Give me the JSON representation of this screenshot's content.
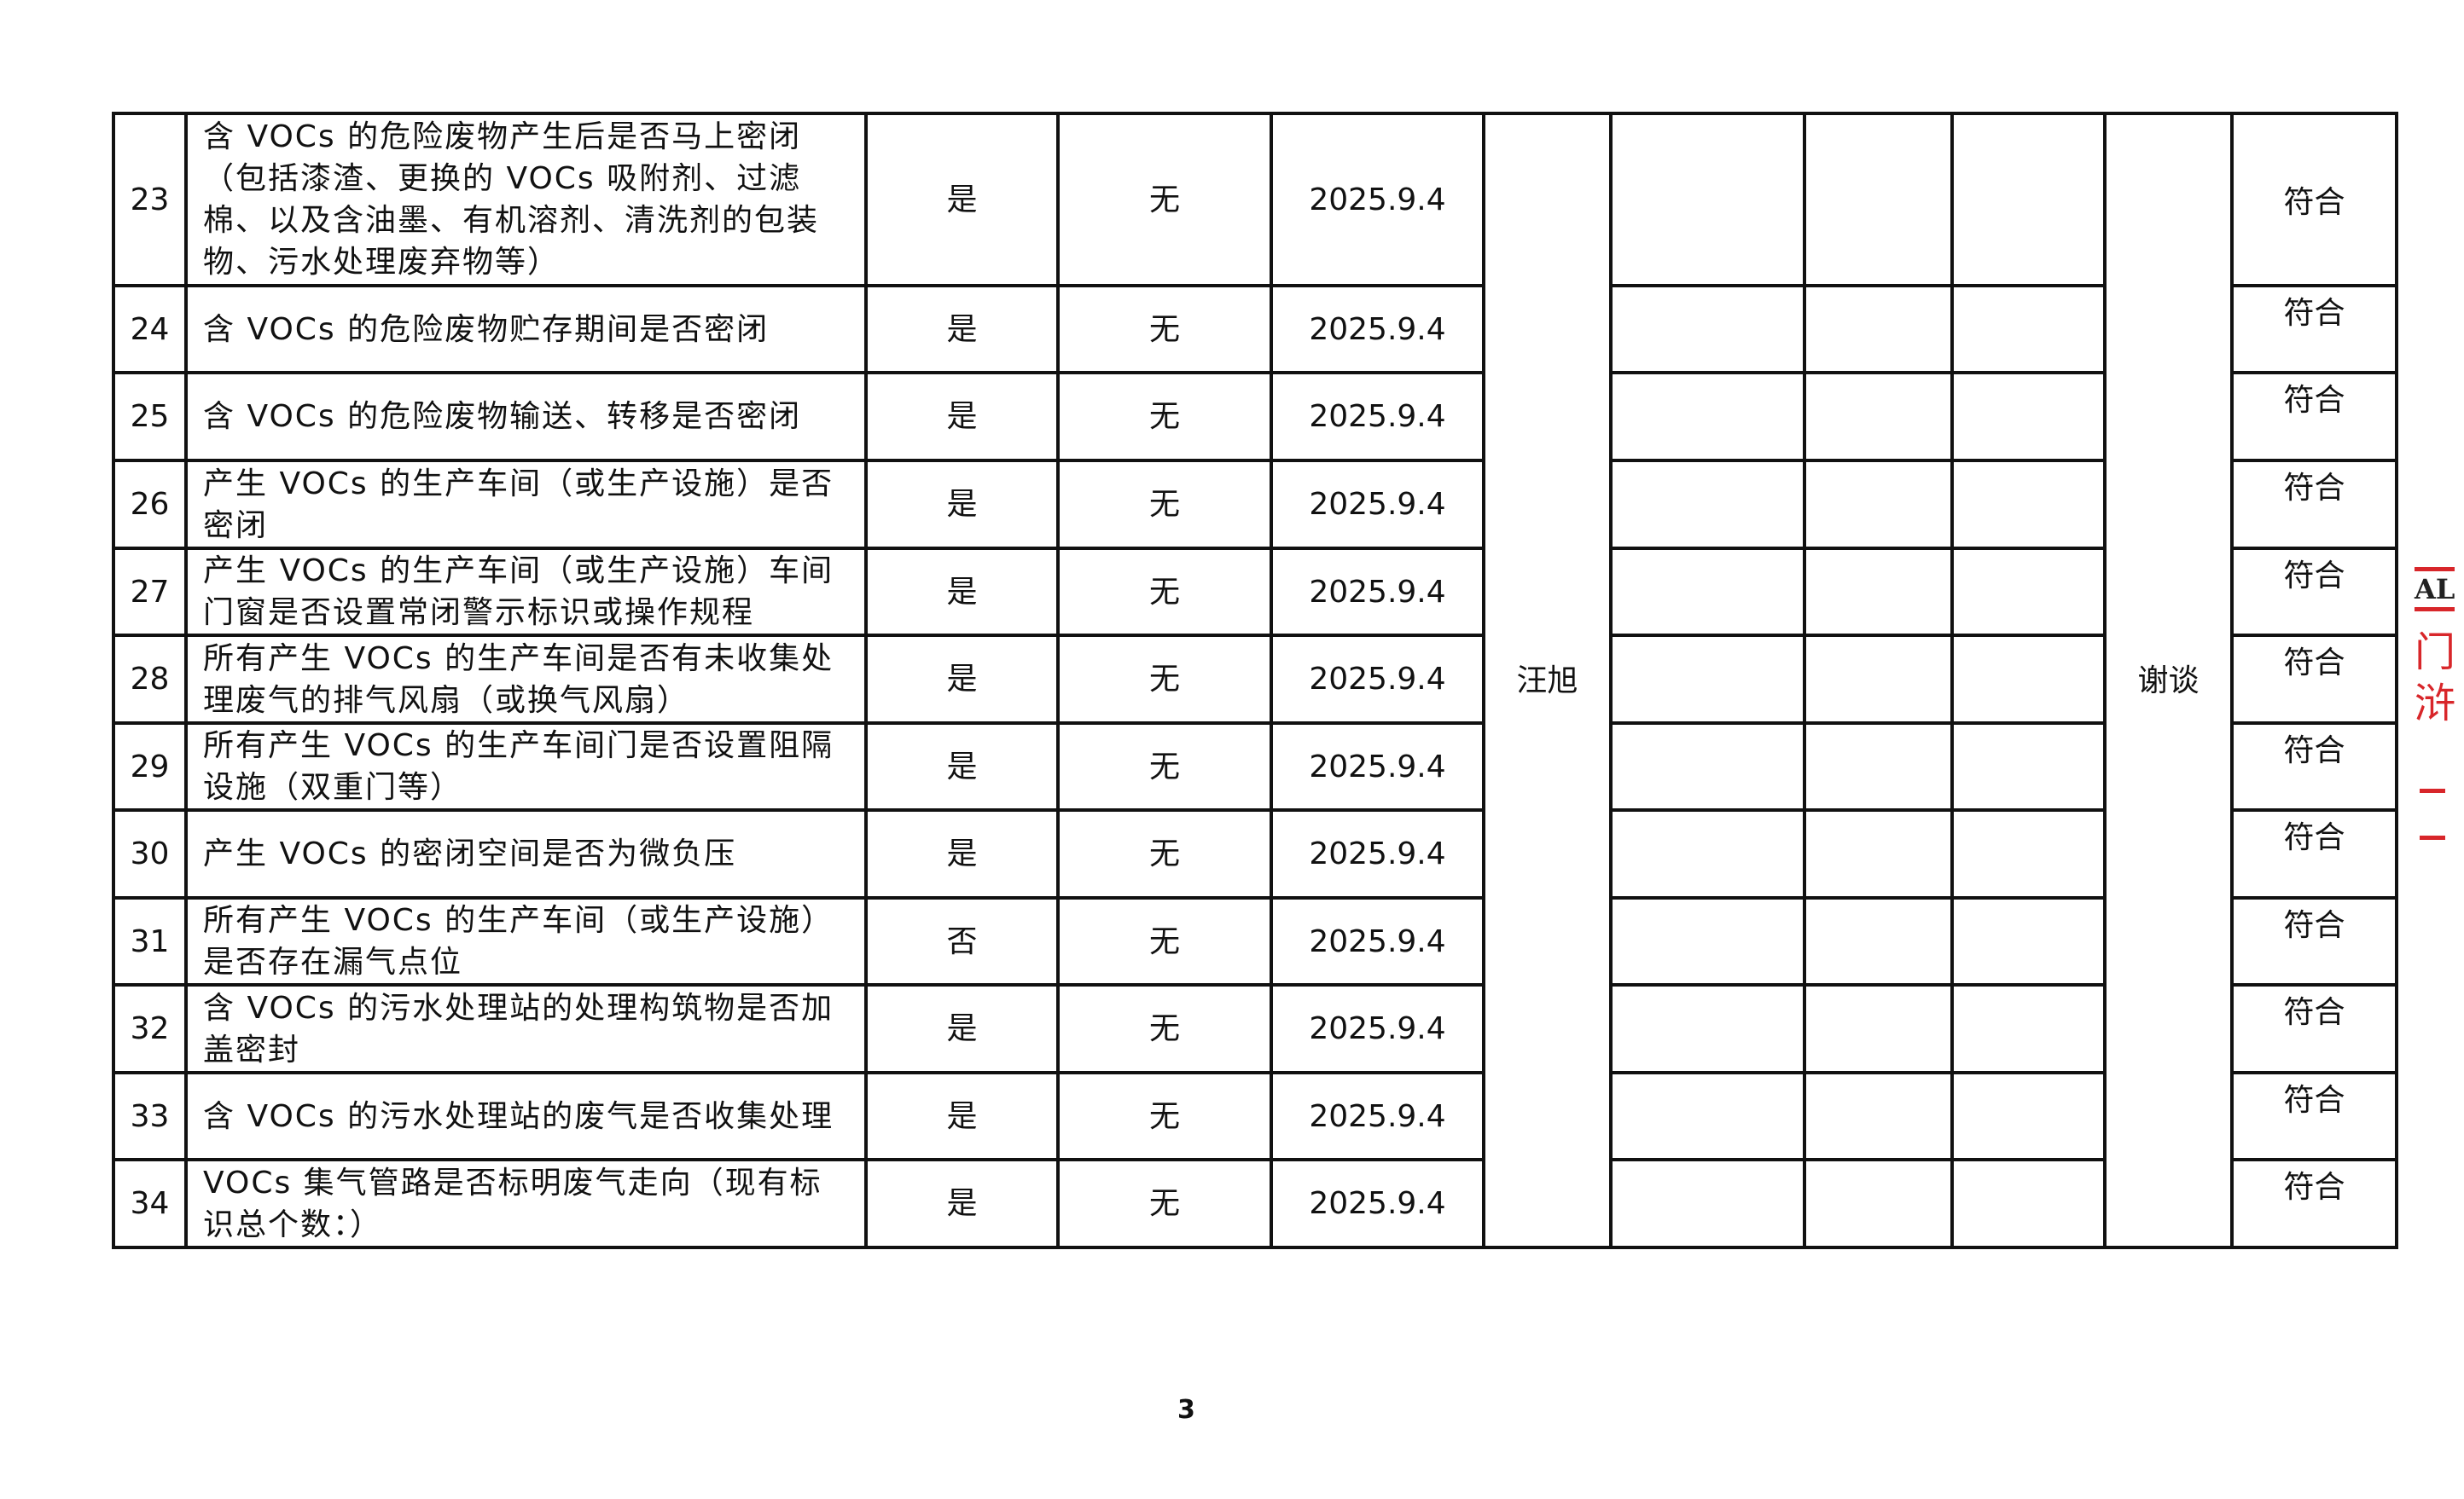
{
  "rows": [
    {
      "no": "23",
      "item": "含 VOCs 的危险废物产生后是否马上密闭（包括漆渣、更换的 VOCs 吸附剂、过滤棉、以及含油墨、有机溶剂、清洗剂的包装物、污水处理废弃物等）",
      "answer": "是",
      "problem": "无",
      "date": "2025.9.4",
      "result": "符合"
    },
    {
      "no": "24",
      "item": "含 VOCs 的危险废物贮存期间是否密闭",
      "answer": "是",
      "problem": "无",
      "date": "2025.9.4",
      "result": "符合"
    },
    {
      "no": "25",
      "item": "含 VOCs 的危险废物输送、转移是否密闭",
      "answer": "是",
      "problem": "无",
      "date": "2025.9.4",
      "result": "符合"
    },
    {
      "no": "26",
      "item": "产生 VOCs 的生产车间（或生产设施）是否密闭",
      "answer": "是",
      "problem": "无",
      "date": "2025.9.4",
      "result": "符合"
    },
    {
      "no": "27",
      "item": "产生 VOCs 的生产车间（或生产设施）车间门窗是否设置常闭警示标识或操作规程",
      "answer": "是",
      "problem": "无",
      "date": "2025.9.4",
      "result": "符合"
    },
    {
      "no": "28",
      "item": "所有产生 VOCs 的生产车间是否有未收集处理废气的排气风扇（或换气风扇）",
      "answer": "是",
      "problem": "无",
      "date": "2025.9.4",
      "result": "符合"
    },
    {
      "no": "29",
      "item": "所有产生 VOCs 的生产车间门是否设置阻隔设施（双重门等）",
      "answer": "是",
      "problem": "无",
      "date": "2025.9.4",
      "result": "符合"
    },
    {
      "no": "30",
      "item": "产生 VOCs 的密闭空间是否为微负压",
      "answer": "是",
      "problem": "无",
      "date": "2025.9.4",
      "result": "符合"
    },
    {
      "no": "31",
      "item": "所有产生 VOCs 的生产车间（或生产设施）是否存在漏气点位",
      "answer": "否",
      "problem": "无",
      "date": "2025.9.4",
      "result": "符合"
    },
    {
      "no": "32",
      "item": "含 VOCs 的污水处理站的处理构筑物是否加盖密封",
      "answer": "是",
      "problem": "无",
      "date": "2025.9.4",
      "result": "符合"
    },
    {
      "no": "33",
      "item": "含 VOCs 的污水处理站的废气是否收集处理",
      "answer": "是",
      "problem": "无",
      "date": "2025.9.4",
      "result": "符合"
    },
    {
      "no": "34",
      "item": "VOCs 集气管路是否标明废气走向（现有标识总个数：）",
      "answer": "是",
      "problem": "无",
      "date": "2025.9.4",
      "result": "符合"
    }
  ],
  "inspector": "汪旭",
  "method": "谢谈",
  "page_number": "3",
  "stamp_text": "AL 门 浒 一 一",
  "colors": {
    "stamp": "#d8262a",
    "lines": "#111111"
  }
}
